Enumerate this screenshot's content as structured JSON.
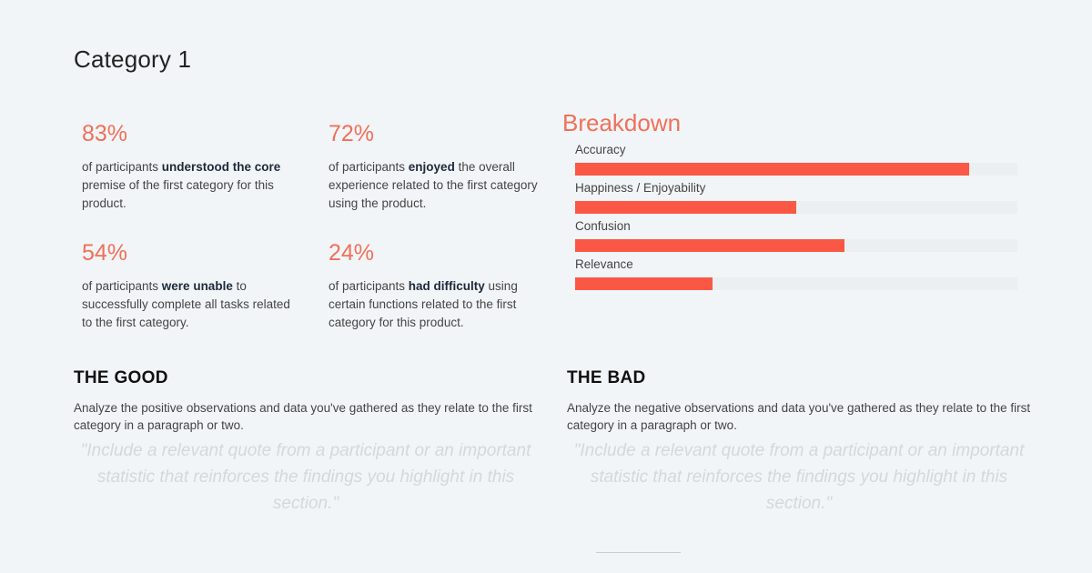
{
  "page": {
    "title": "Category 1"
  },
  "stats": [
    {
      "value": "83%",
      "pre": "of participants ",
      "strong": "understood the core",
      "post": " premise of the first category for this product."
    },
    {
      "value": "72%",
      "pre": "of participants ",
      "strong": "enjoyed",
      "post": " the overall experience related to the first category using the product."
    },
    {
      "value": "54%",
      "pre": "of participants ",
      "strong": "were unable",
      "post": " to successfully complete all tasks related to the first category."
    },
    {
      "value": "24%",
      "pre": "of participants ",
      "strong": "had difficulty",
      "post": " using certain functions related to the first category for this product."
    }
  ],
  "breakdown": {
    "title": "Breakdown",
    "items": [
      {
        "label": "Accuracy",
        "fraction": 0.89
      },
      {
        "label": "Happiness / Enjoyability",
        "fraction": 0.5
      },
      {
        "label": "Confusion",
        "fraction": 0.61
      },
      {
        "label": "Relevance",
        "fraction": 0.31
      }
    ]
  },
  "good": {
    "heading": "THE GOOD",
    "body": "Analyze the positive observations and data you've gathered as they relate to the first category in a paragraph or two.",
    "quote": "\"Include a relevant quote from a participant or an important statistic that reinforces the findings you highlight in this section.\""
  },
  "bad": {
    "heading": "THE BAD",
    "body": "Analyze the negative observations and data you've gathered as they relate to the first category in a paragraph or two.",
    "quote": "\"Include a relevant quote from a participant or an important statistic that reinforces the findings you highlight in this section.\""
  },
  "colors": {
    "accent": "#f0705a",
    "bar": "#fa5845",
    "background": "#f2f5f7"
  }
}
